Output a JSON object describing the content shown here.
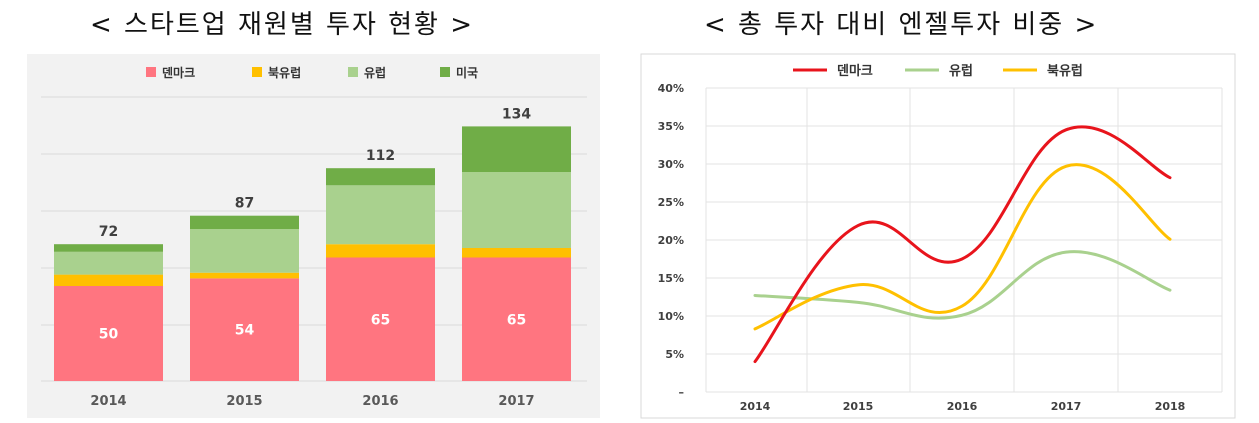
{
  "titles": {
    "left": "< 스타트업 재원별 투자 현황 >",
    "right": "< 총 투자 대비 엔젤투자 비중 >"
  },
  "chart_data": [
    {
      "type": "bar",
      "stacked": true,
      "categories": [
        "2014",
        "2015",
        "2016",
        "2017"
      ],
      "series": [
        {
          "name": "덴마크",
          "color": "#FF7580",
          "values": [
            50,
            54,
            65,
            65
          ]
        },
        {
          "name": "북유럽",
          "color": "#FFC000",
          "values": [
            6,
            3,
            7,
            5
          ]
        },
        {
          "name": "유럽",
          "color": "#A9D18E",
          "values": [
            12,
            23,
            31,
            40
          ]
        },
        {
          "name": "미국",
          "color": "#70AD47",
          "values": [
            4,
            7,
            9,
            24
          ]
        }
      ],
      "totals": [
        72,
        87,
        112,
        134
      ],
      "legend": "top",
      "grid": true
    },
    {
      "type": "line",
      "smooth": true,
      "x": [
        "2014",
        "2015",
        "2016",
        "2017",
        "2018"
      ],
      "series": [
        {
          "name": "덴마크",
          "color": "#E8141C",
          "values": [
            4,
            21.9,
            17.5,
            34.5,
            28.2
          ]
        },
        {
          "name": "유럽",
          "color": "#A9D18E",
          "values": [
            12.7,
            11.8,
            10.1,
            18.4,
            13.4
          ]
        },
        {
          "name": "북유럽",
          "color": "#FFC000",
          "values": [
            8.3,
            14.1,
            11.3,
            29.7,
            20.1
          ]
        }
      ],
      "y_ticks": [
        "–",
        "5%",
        "10%",
        "15%",
        "20%",
        "25%",
        "30%",
        "35%",
        "40%"
      ],
      "ylim": [
        0,
        40
      ],
      "legend": "top",
      "grid": true
    }
  ]
}
